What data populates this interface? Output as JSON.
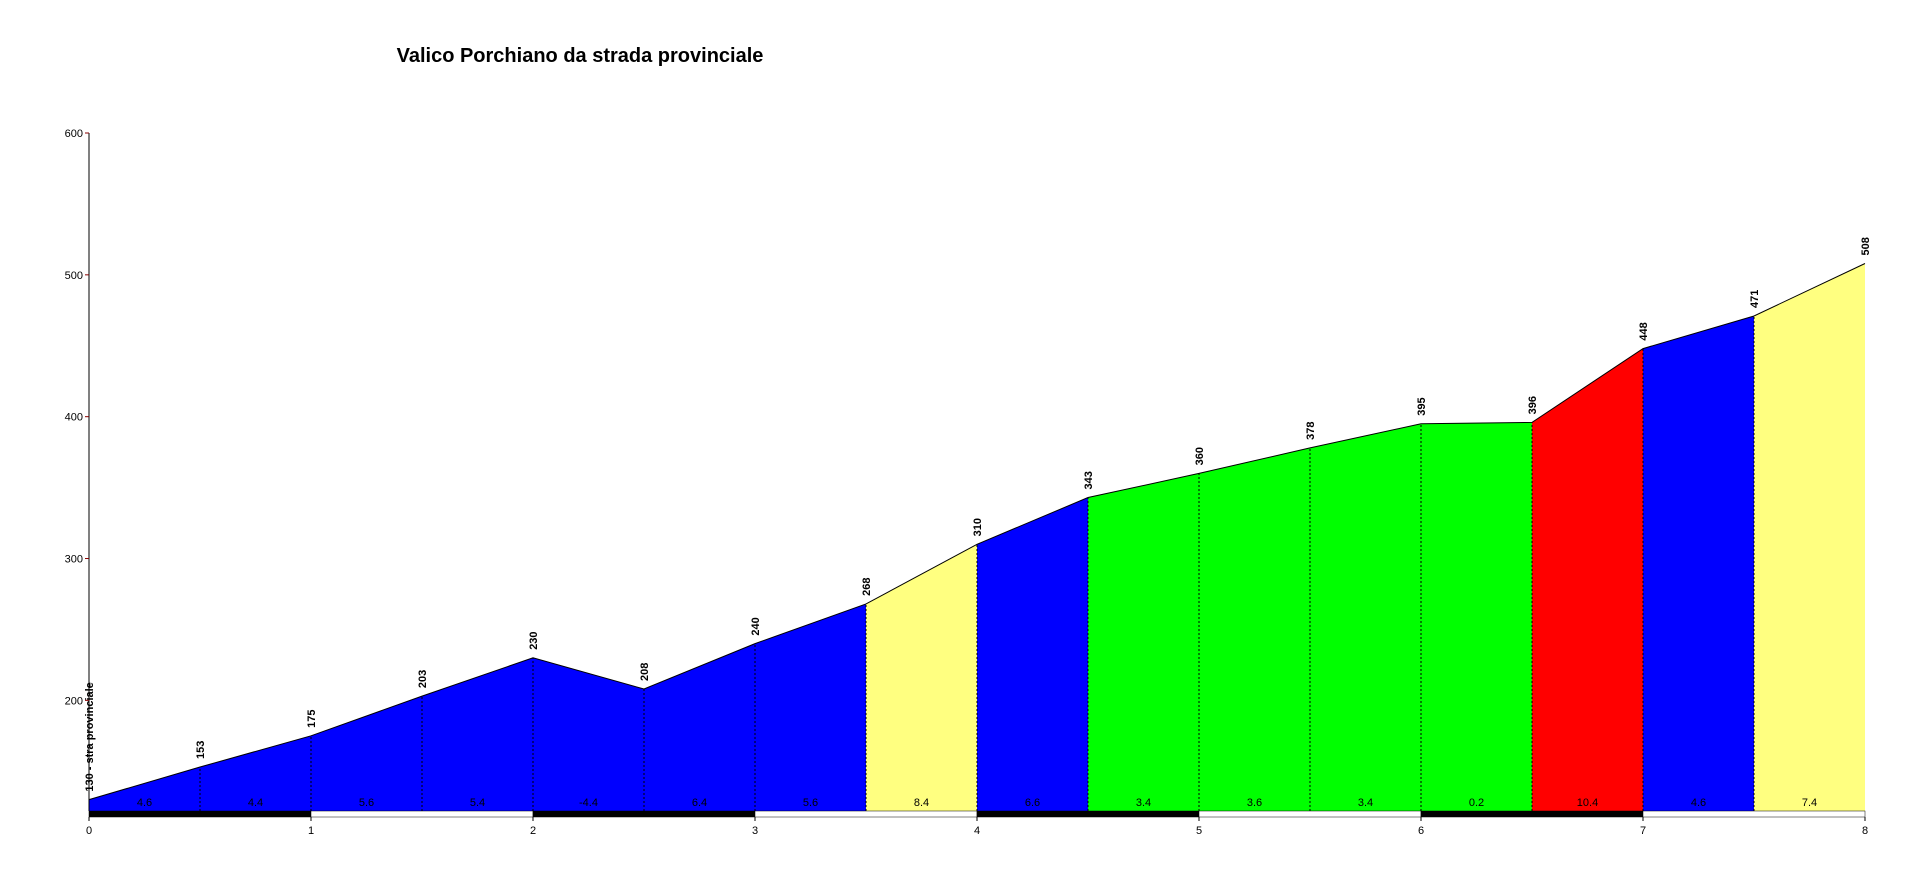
{
  "chart_data": {
    "type": "area",
    "title": "Valico Porchiano  da strada provinciale",
    "x": [
      0,
      0.5,
      1,
      1.5,
      2,
      2.5,
      3,
      3.5,
      4,
      4.5,
      5,
      5.5,
      6,
      6.5,
      7,
      7.5,
      8
    ],
    "values": [
      130,
      153,
      175,
      203,
      230,
      208,
      240,
      268,
      310,
      343,
      360,
      378,
      395,
      396,
      448,
      471,
      508
    ],
    "value_labels": [
      "130 - stra provinciale",
      "153",
      "175",
      "203",
      "230",
      "208",
      "240",
      "268",
      "310",
      "343",
      "360",
      "378",
      "395",
      "396",
      "448",
      "471",
      "508"
    ],
    "gradients": [
      4.6,
      4.4,
      5.6,
      5.4,
      -4.4,
      6.4,
      5.6,
      8.4,
      6.6,
      3.4,
      3.6,
      3.4,
      0.2,
      10.4,
      4.6,
      7.4
    ],
    "segment_colors": [
      "#0000ff",
      "#0000ff",
      "#0000ff",
      "#0000ff",
      "#0000ff",
      "#0000ff",
      "#0000ff",
      "#ffff80",
      "#0000ff",
      "#00ff00",
      "#00ff00",
      "#00ff00",
      "#00ff00",
      "#ff0000",
      "#0000ff",
      "#ffff80"
    ],
    "xlim": [
      0,
      8
    ],
    "xticks": [
      0,
      1,
      2,
      3,
      4,
      5,
      6,
      7,
      8
    ],
    "ylim": [
      122,
      600
    ],
    "yticks": [
      200,
      300,
      400,
      500,
      600
    ]
  }
}
